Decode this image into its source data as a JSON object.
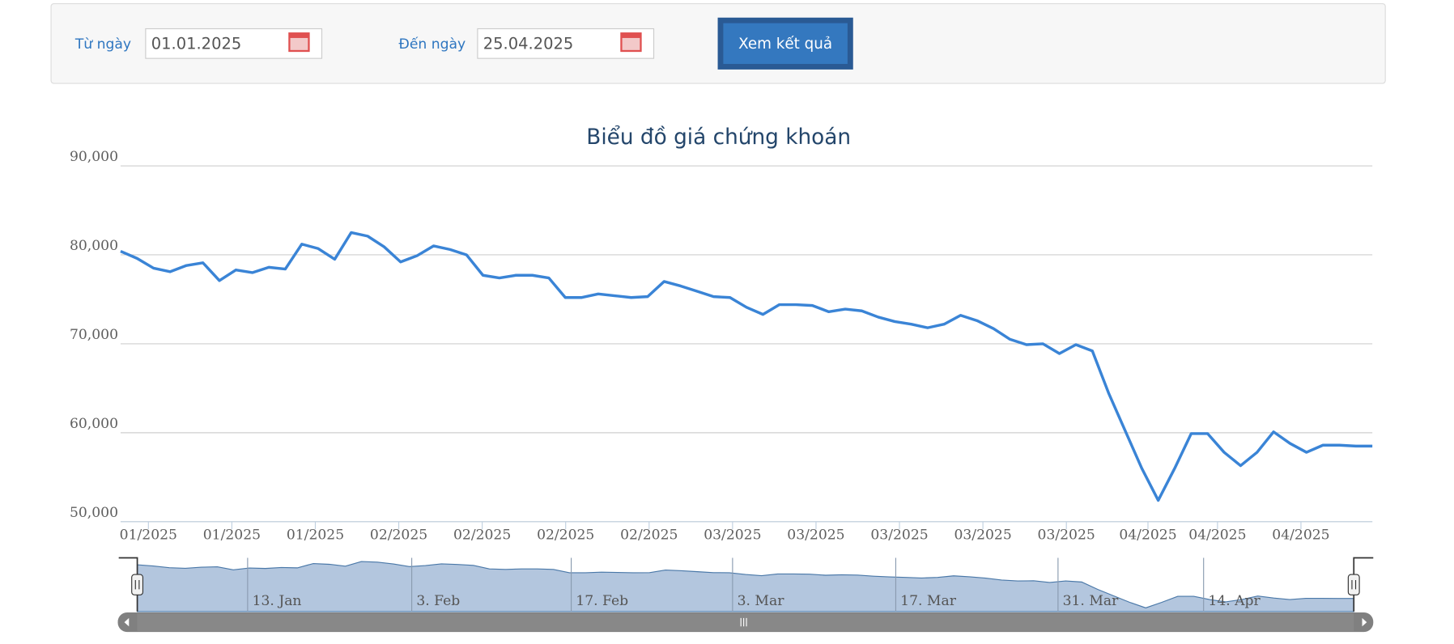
{
  "form": {
    "from_label": "Từ ngày",
    "from_value": "01.01.2025",
    "to_label": "Đến ngày",
    "to_value": "25.04.2025",
    "button": "Xem kết quả"
  },
  "chart_data": {
    "type": "line",
    "title": "Biểu đồ giá chứng khoán",
    "color": "#3a84d6",
    "grid": true,
    "categories": [
      null,
      null,
      null,
      null,
      null,
      null,
      null,
      null,
      null,
      null,
      null,
      null,
      null,
      null,
      null,
      null,
      null,
      null,
      null,
      null,
      null,
      null,
      null,
      null,
      null,
      null,
      null,
      null,
      null,
      null,
      null,
      null,
      null,
      null,
      null,
      null,
      null,
      null,
      null,
      null,
      null,
      null,
      null,
      null,
      null,
      null,
      null,
      null,
      null,
      null,
      null,
      null,
      null,
      null,
      null,
      null,
      null,
      null,
      null,
      null,
      null,
      null,
      null,
      null,
      null,
      null,
      null,
      null,
      null,
      null,
      null,
      null,
      null,
      null,
      null,
      null,
      null
    ],
    "values": [
      80400,
      79600,
      78500,
      78100,
      78800,
      79100,
      77100,
      78300,
      78000,
      78600,
      78400,
      81200,
      80700,
      79500,
      82500,
      82100,
      80900,
      79200,
      79900,
      81000,
      80600,
      80000,
      77700,
      77400,
      77700,
      77700,
      77400,
      75200,
      75200,
      75600,
      75400,
      75200,
      75300,
      77000,
      76500,
      75900,
      75300,
      75200,
      74100,
      73300,
      74400,
      74400,
      74300,
      73600,
      73900,
      73700,
      73000,
      72500,
      72200,
      71800,
      72200,
      73200,
      72600,
      71700,
      70500,
      69900,
      70000,
      68900,
      69900,
      69200,
      64400,
      60200,
      56000,
      52400,
      56000,
      59900,
      59900,
      57800,
      56300,
      57800,
      60100,
      58800,
      57800,
      58600,
      58600,
      58500,
      58500
    ],
    "ylim": [
      50000,
      90000
    ],
    "yticks": [
      {
        "value": 50000,
        "label": "50,000"
      },
      {
        "value": 60000,
        "label": "60,000"
      },
      {
        "value": 70000,
        "label": "70,000"
      },
      {
        "value": 80000,
        "label": "80,000"
      },
      {
        "value": 90000,
        "label": "90,000"
      }
    ],
    "xtick_labels": [
      "01/2025",
      "01/2025",
      "01/2025",
      "02/2025",
      "02/2025",
      "02/2025",
      "02/2025",
      "03/2025",
      "03/2025",
      "03/2025",
      "03/2025",
      "03/2025",
      "04/2025",
      "04/2025",
      "04/2025"
    ],
    "navigator_labels": [
      "13. Jan",
      "3. Feb",
      "17. Feb",
      "3. Mar",
      "17. Mar",
      "31. Mar",
      "14. Apr"
    ]
  }
}
